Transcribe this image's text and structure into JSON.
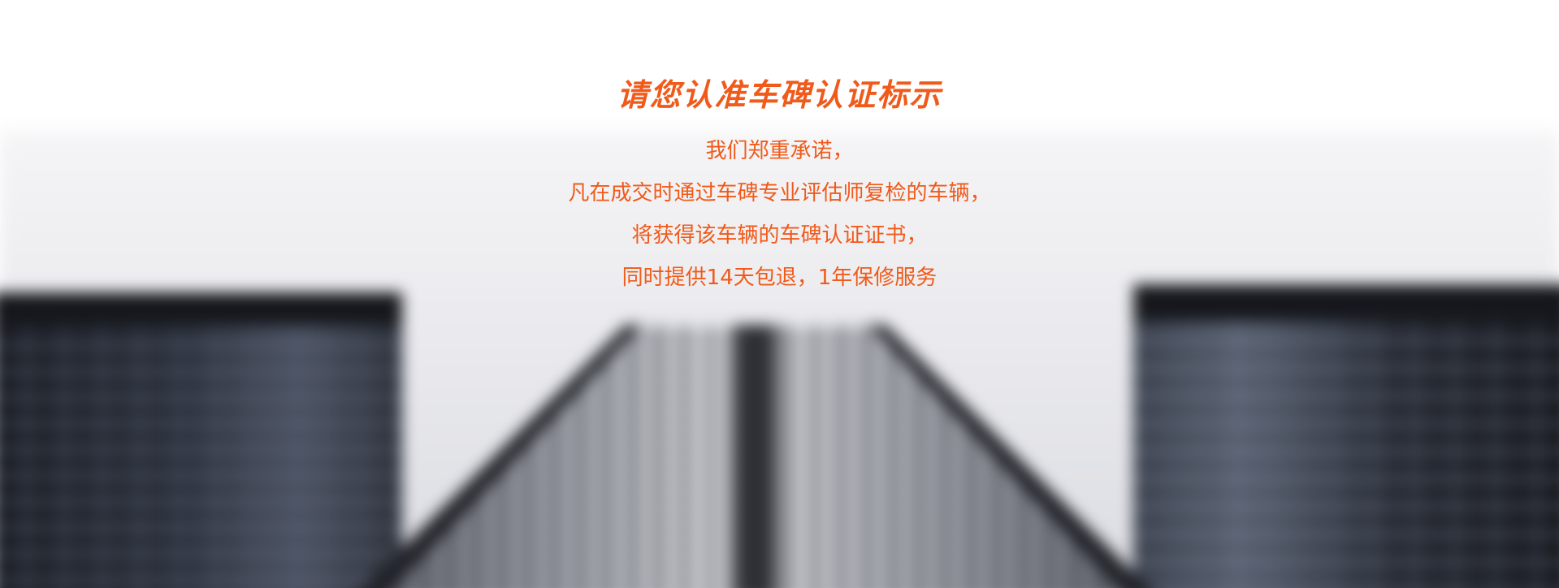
{
  "banner": {
    "title": "请您认准车碑认证标示",
    "lines": [
      "我们郑重承诺，",
      "凡在成交时通过车碑专业评估师复检的车辆，",
      "将获得该车辆的车碑认证证书，",
      "同时提供14天包退，1年保修服务"
    ]
  },
  "colors": {
    "accent": "#f05a1a",
    "background": "#ffffff"
  }
}
